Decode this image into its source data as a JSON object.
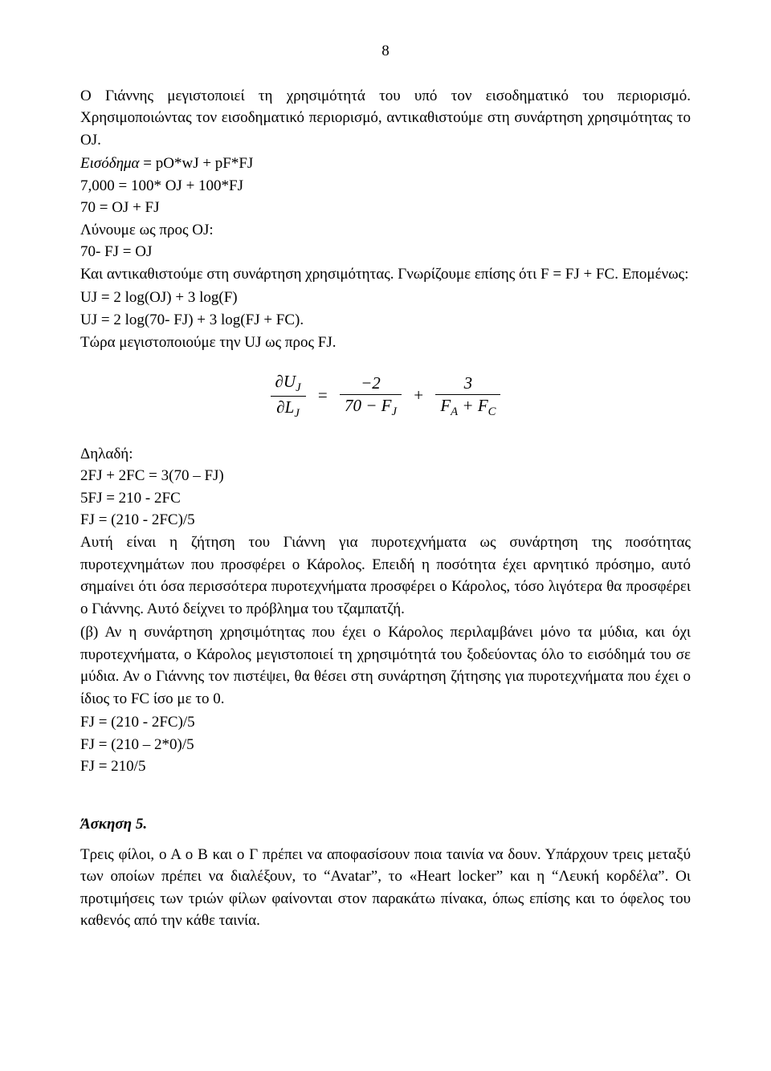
{
  "page_number": "8",
  "p1": "Ο Γιάννης μεγιστοποιεί τη χρησιμότητά του υπό τον εισοδηματικό του περιορισμό. Χρησιμοποιώντας τον εισοδηματικό περιορισμό, αντικαθιστούμε στη συνάρτηση χρησιμότητας το OJ.",
  "p2_label": "Εισόδημα",
  "p2_rest": " = pO*wJ + pF*FJ",
  "p3": "7,000 = 100* OJ + 100*FJ",
  "p4": "70 = OJ + FJ",
  "p5": "Λύνουμε ως προς  OJ:",
  "p6": "70- FJ = OJ",
  "p7": "Και αντικαθιστούμε στη συνάρτηση χρησιμότητας. Γνωρίζουμε επίσης ότι  F = FJ + FC. Επομένως:",
  "p8": "UJ = 2 log(OJ) + 3 log(F)",
  "p9": "UJ = 2 log(70- FJ) + 3 log(FJ + FC).",
  "p10": "Τώρα μεγιστοποιούμε την  UJ ως προς  FJ.",
  "eq": {
    "lhs_num": "∂U",
    "lhs_num_sub": "J",
    "lhs_den": "∂L",
    "lhs_den_sub": "J",
    "mid_num": "−2",
    "mid_den_a": "70 − F",
    "mid_den_sub": "J",
    "rhs_num": "3",
    "rhs_den_a": "F",
    "rhs_den_sub1": "A",
    "rhs_den_b": " + F",
    "rhs_den_sub2": "C",
    "eq_sign": "=",
    "plus_sign": "+"
  },
  "p11": "Δηλαδή:",
  "p12": "2FJ + 2FC = 3(70 – FJ)",
  "p13": "5FJ = 210 - 2FC",
  "p14": "FJ = (210 - 2FC)/5",
  "p15": "Αυτή είναι η ζήτηση του Γιάννη για πυροτεχνήματα ως συνάρτηση της ποσότητας πυροτεχνημάτων που προσφέρει ο Κάρολος. Επειδή η ποσότητα έχει αρνητικό πρόσημο, αυτό σημαίνει ότι όσα περισσότερα πυροτεχνήματα προσφέρει ο Κάρολος, τόσο λιγότερα θα προσφέρει ο Γιάννης. Αυτό δείχνει το πρόβλημα του τζαμπατζή.",
  "p16": "(β) Αν η συνάρτηση χρησιμότητας που έχει ο Κάρολος περιλαμβάνει μόνο τα μύδια, και όχι πυροτεχνήματα, ο Κάρολος μεγιστοποιεί τη χρησιμότητά του ξοδεύοντας όλο το εισόδημά του σε μύδια. Αν ο Γιάννης τον πιστέψει, θα θέσει στη συνάρτηση ζήτησης για πυροτεχνήματα που έχει ο ίδιος το FC ίσο με το 0.",
  "p17": "FJ = (210 - 2FC)/5",
  "p18": "FJ = (210 – 2*0)/5",
  "p19": "FJ = 210/5",
  "ex_title": "Άσκηση 5.",
  "p20": "Τρεις φίλοι, ο Α ο Β και ο Γ πρέπει να αποφασίσουν ποια ταινία να δουν. Υπάρχουν τρεις μεταξύ των οποίων πρέπει να διαλέξουν, το “Avatar”, το «Heart locker” και η “Λευκή κορδέλα”. Οι προτιμήσεις των τριών φίλων φαίνονται στον παρακάτω πίνακα, όπως επίσης και το όφελος του καθενός από την κάθε ταινία."
}
